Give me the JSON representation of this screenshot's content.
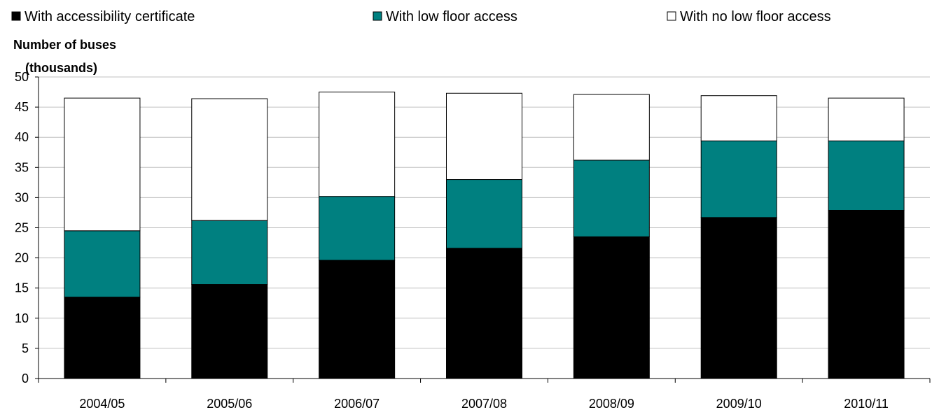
{
  "chart_data": {
    "type": "bar",
    "stacked": true,
    "categories": [
      "2004/05",
      "2005/06",
      "2006/07",
      "2007/08",
      "2008/09",
      "2009/10",
      "2010/11"
    ],
    "series": [
      {
        "name": "With accessibility certificate",
        "values": [
          13.5,
          15.6,
          19.6,
          21.6,
          23.5,
          26.7,
          27.9
        ],
        "color": "#000000"
      },
      {
        "name": "With low floor access",
        "values": [
          11.0,
          10.6,
          10.6,
          11.4,
          12.7,
          12.7,
          11.5
        ],
        "color": "#008080"
      },
      {
        "name": "With no low floor access",
        "values": [
          22.0,
          20.2,
          17.3,
          14.3,
          10.9,
          7.5,
          7.1
        ],
        "color": "#ffffff"
      }
    ],
    "ylabel": "Number of buses\n(thousands)",
    "ylabel_lines": [
      "Number of buses",
      "(thousands)"
    ],
    "ylim": [
      0,
      50
    ],
    "yticks": [
      0,
      5,
      10,
      15,
      20,
      25,
      30,
      35,
      40,
      45,
      50
    ],
    "grid": true,
    "legend_position": "top"
  }
}
